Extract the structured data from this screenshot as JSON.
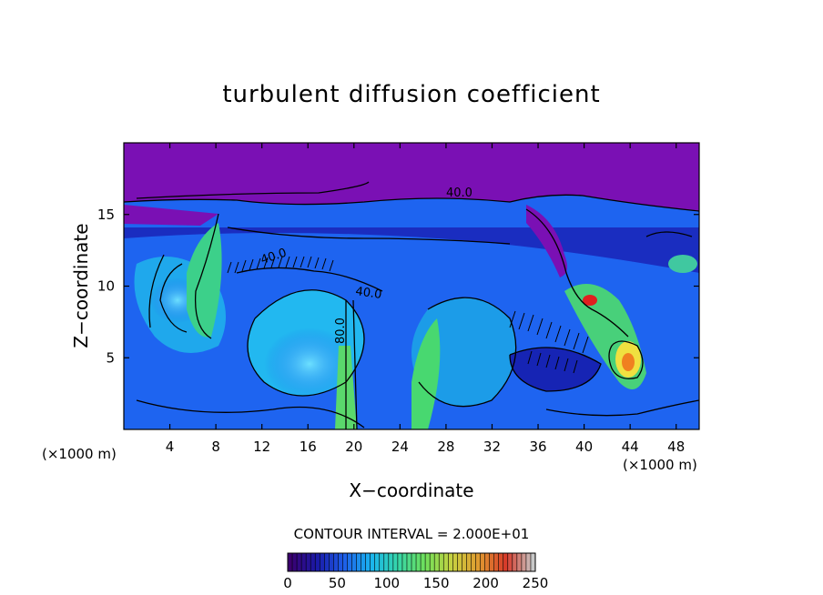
{
  "chart_data": {
    "type": "heatmap",
    "title": "turbulent diffusion coefficient",
    "xlabel": "X−coordinate",
    "ylabel": "Z−coordinate",
    "x_unit_left": "(×1000 m)",
    "x_unit_right": "(×1000 m)",
    "xlim": [
      0,
      50
    ],
    "ylim": [
      0,
      20
    ],
    "x_ticks": [
      4,
      8,
      12,
      16,
      20,
      24,
      28,
      32,
      36,
      40,
      44,
      48
    ],
    "y_ticks": [
      5,
      10,
      15
    ],
    "contour_interval_text": "CONTOUR INTERVAL = 2.000E+01",
    "contour_labels": [
      "40.0",
      "40.0",
      "40.0",
      "40.0",
      "80.0",
      "40.0"
    ],
    "colorbar": {
      "min": 0,
      "max": 250,
      "ticks": [
        0,
        50,
        100,
        150,
        200,
        250
      ],
      "colors": [
        "#3b006e",
        "#1a1aa8",
        "#1e5ee8",
        "#19b4f0",
        "#36d6a8",
        "#6fe05a",
        "#c8d040",
        "#e09a30",
        "#d83a2a",
        "#c8c8c8"
      ]
    },
    "field": {
      "background_top_value": 0,
      "notes_colors": {
        "purple": "#7a10b4",
        "dark_blue": "#1428c8",
        "blue": "#1e64f0",
        "cyan": "#20b4f0",
        "green": "#40d880",
        "yellow": "#f0e040",
        "orange": "#f08020",
        "red": "#e02020"
      }
    }
  }
}
